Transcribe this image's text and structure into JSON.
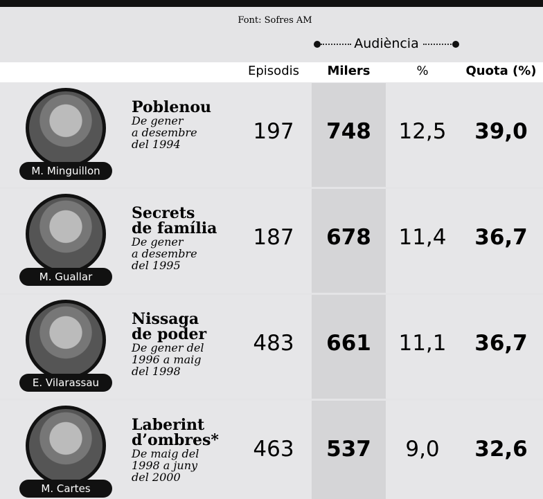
{
  "source": "Font: Sofres AM",
  "group_header": "Audiència",
  "columns": [
    "Episodis",
    "Milers",
    "%",
    "Quota (%)"
  ],
  "rows": [
    {
      "name": "M. Minguillon",
      "title_lines": [
        "Poblenou"
      ],
      "period_lines": [
        "De gener",
        "a desembre",
        "del 1994"
      ],
      "values": [
        "197",
        "748",
        "12,5",
        "39,0"
      ]
    },
    {
      "name": "M. Guallar",
      "title_lines": [
        "Secrets",
        "de família"
      ],
      "period_lines": [
        "De gener",
        "a desembre",
        "del 1995"
      ],
      "values": [
        "187",
        "678",
        "11,4",
        "36,7"
      ]
    },
    {
      "name": "E. Vilarassau",
      "title_lines": [
        "Nissaga",
        "de poder"
      ],
      "period_lines": [
        "De gener del",
        "1996 a maig",
        "del 1998"
      ],
      "values": [
        "483",
        "661",
        "11,1",
        "36,7"
      ]
    },
    {
      "name": "M. Cartes",
      "title_lines": [
        "Laberint",
        "d’ombres*"
      ],
      "period_lines": [
        "De maig del",
        "1998 a juny",
        "del 2000"
      ],
      "values": [
        "463",
        "537",
        "9,0",
        "32,6"
      ]
    }
  ]
}
